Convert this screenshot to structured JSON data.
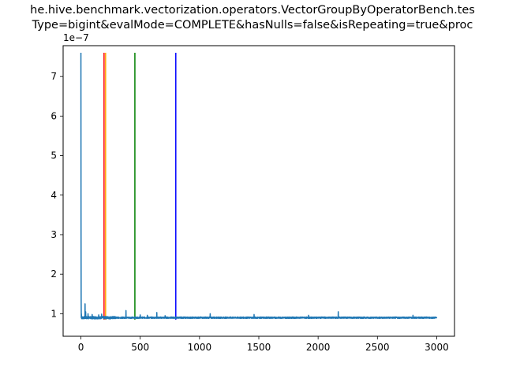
{
  "chart_data": {
    "type": "line",
    "title_lines": [
      "he.hive.benchmark.vectorization.operators.VectorGroupByOperatorBench.tes",
      "Type=bigint&evalMode=COMPLETE&hasNulls=false&isRepeating=true&proc"
    ],
    "xlabel": "",
    "ylabel": "",
    "y_offset_label": "1e−7",
    "xlim": [
      -150,
      3150
    ],
    "ylim": [
      0.43,
      7.78
    ],
    "x_ticks": [
      0,
      500,
      1000,
      1500,
      2000,
      2500,
      3000
    ],
    "x_tick_labels": [
      "0",
      "500",
      "1000",
      "1500",
      "2000",
      "2500",
      "3000"
    ],
    "y_ticks": [
      1,
      2,
      3,
      4,
      5,
      6,
      7
    ],
    "y_tick_labels": [
      "1",
      "2",
      "3",
      "4",
      "5",
      "6",
      "7"
    ],
    "grid": false,
    "series": [
      {
        "color": "#1f77b4",
        "baseline": 0.9,
        "n_points": 3001,
        "spikes": [
          {
            "x": 0,
            "y": 7.6
          },
          {
            "x": 1,
            "y": 3.2
          },
          {
            "x": 2,
            "y": 1.4
          },
          {
            "x": 4,
            "y": 1.0
          },
          {
            "x": 35,
            "y": 1.25
          },
          {
            "x": 40,
            "y": 1.05
          },
          {
            "x": 60,
            "y": 1.0
          },
          {
            "x": 95,
            "y": 0.98
          },
          {
            "x": 150,
            "y": 0.97
          },
          {
            "x": 175,
            "y": 0.99
          },
          {
            "x": 380,
            "y": 1.08
          },
          {
            "x": 500,
            "y": 0.97
          },
          {
            "x": 560,
            "y": 0.96
          },
          {
            "x": 640,
            "y": 1.03
          },
          {
            "x": 710,
            "y": 0.95
          },
          {
            "x": 1090,
            "y": 1.0
          },
          {
            "x": 1460,
            "y": 0.98
          },
          {
            "x": 1920,
            "y": 0.96
          },
          {
            "x": 2170,
            "y": 1.05
          },
          {
            "x": 2800,
            "y": 0.96
          }
        ]
      }
    ],
    "vlines": [
      {
        "x": 195,
        "ymin": 0.85,
        "ymax": 7.6,
        "color": "#ff0000"
      },
      {
        "x": 208,
        "ymin": 0.85,
        "ymax": 7.6,
        "color": "#ffa500"
      },
      {
        "x": 455,
        "ymin": 0.85,
        "ymax": 7.6,
        "color": "#008000"
      },
      {
        "x": 800,
        "ymin": 0.85,
        "ymax": 7.6,
        "color": "#0000ff"
      }
    ]
  }
}
